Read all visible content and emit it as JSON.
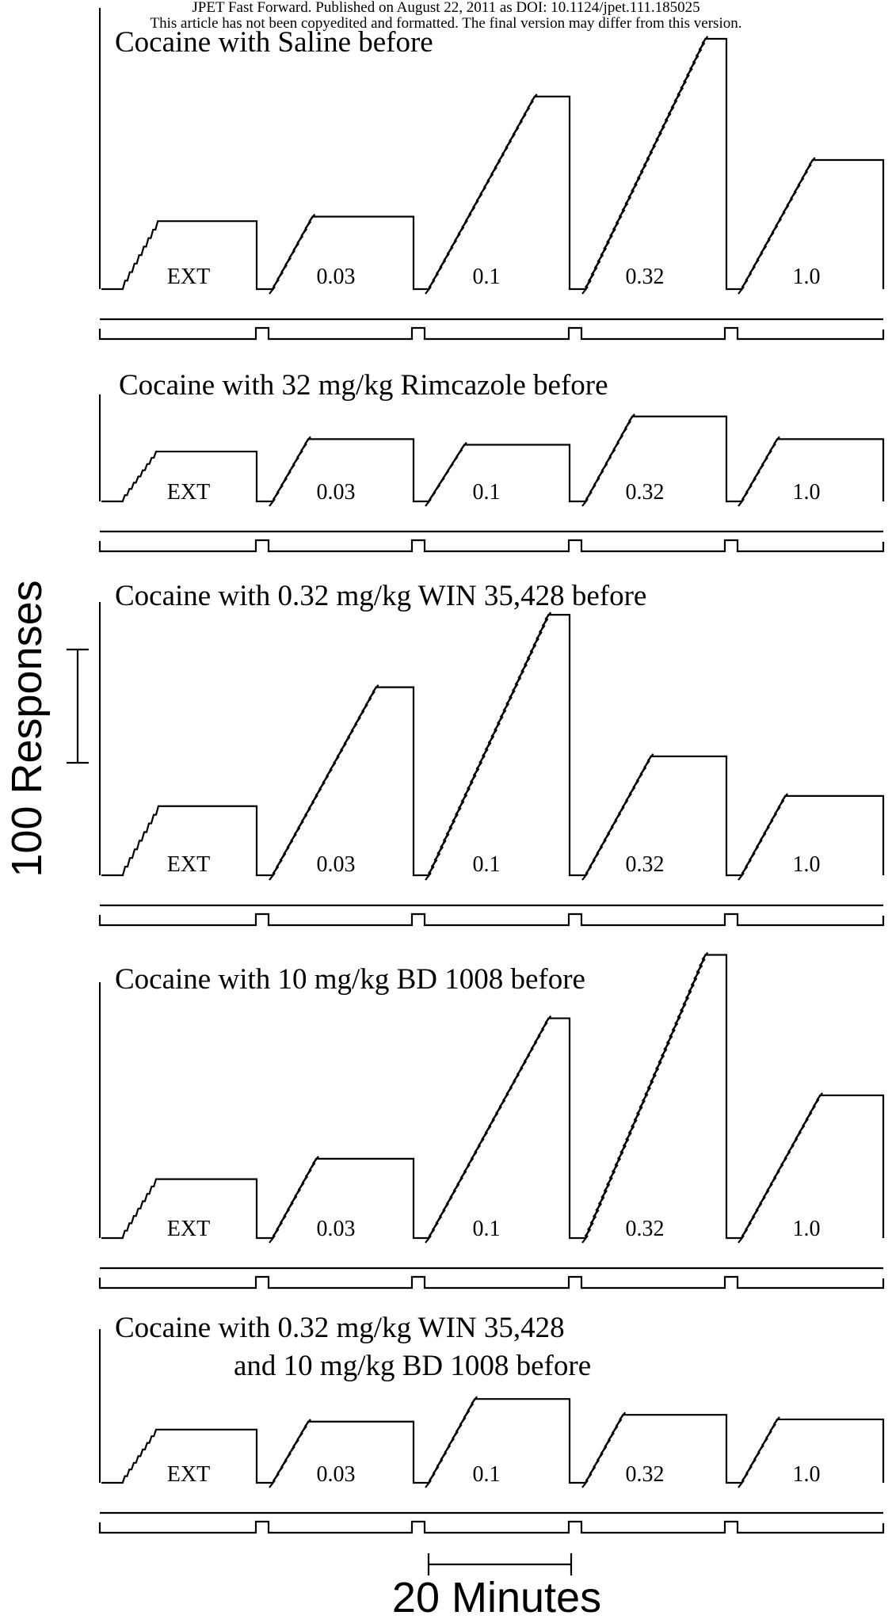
{
  "header": {
    "line1": "JPET Fast Forward. Published on August 22, 2011 as DOI: 10.1124/jpet.111.185025",
    "line2": "This article has not been copyedited and formatted. The final version may differ from this version."
  },
  "chart_data": {
    "type": "line",
    "description_type": "cumulative-record",
    "ylabel": "100 Responses",
    "xlabel": "20 Minutes",
    "y_scale_bar_responses": 100,
    "x_scale_bar_minutes": 20,
    "segment_labels": [
      "EXT",
      "0.03",
      "0.1",
      "0.32",
      "1.0"
    ],
    "y_units": "cumulative responses",
    "panels": [
      {
        "title": "Cocaine with Saline before",
        "title_line2": "",
        "segments": [
          {
            "label": "EXT",
            "responses": 60
          },
          {
            "label": "0.03",
            "responses": 64
          },
          {
            "label": "0.1",
            "responses": 170
          },
          {
            "label": "0.32",
            "responses": 221
          },
          {
            "label": "1.0",
            "responses": 114
          }
        ]
      },
      {
        "title": "Cocaine with 32 mg/kg Rimcazole before",
        "title_line2": "",
        "segments": [
          {
            "label": "EXT",
            "responses": 44
          },
          {
            "label": "0.03",
            "responses": 55
          },
          {
            "label": "0.1",
            "responses": 50
          },
          {
            "label": "0.32",
            "responses": 75
          },
          {
            "label": "1.0",
            "responses": 55
          }
        ]
      },
      {
        "title": "Cocaine with 0.32 mg/kg WIN 35,428 before",
        "title_line2": "",
        "segments": [
          {
            "label": "EXT",
            "responses": 61
          },
          {
            "label": "0.03",
            "responses": 166
          },
          {
            "label": "0.1",
            "responses": 230
          },
          {
            "label": "0.32",
            "responses": 105
          },
          {
            "label": "1.0",
            "responses": 70
          }
        ]
      },
      {
        "title": "Cocaine with 10 mg/kg BD 1008 before",
        "title_line2": "",
        "segments": [
          {
            "label": "EXT",
            "responses": 52
          },
          {
            "label": "0.03",
            "responses": 70
          },
          {
            "label": "0.1",
            "responses": 194
          },
          {
            "label": "0.32",
            "responses": 250
          },
          {
            "label": "1.0",
            "responses": 126
          }
        ]
      },
      {
        "title": "Cocaine with 0.32 mg/kg WIN 35,428",
        "title_line2": "and 10 mg/kg BD 1008 before",
        "segments": [
          {
            "label": "EXT",
            "responses": 47
          },
          {
            "label": "0.03",
            "responses": 54
          },
          {
            "label": "0.1",
            "responses": 74
          },
          {
            "label": "0.32",
            "responses": 60
          },
          {
            "label": "1.0",
            "responses": 56
          }
        ]
      }
    ]
  }
}
